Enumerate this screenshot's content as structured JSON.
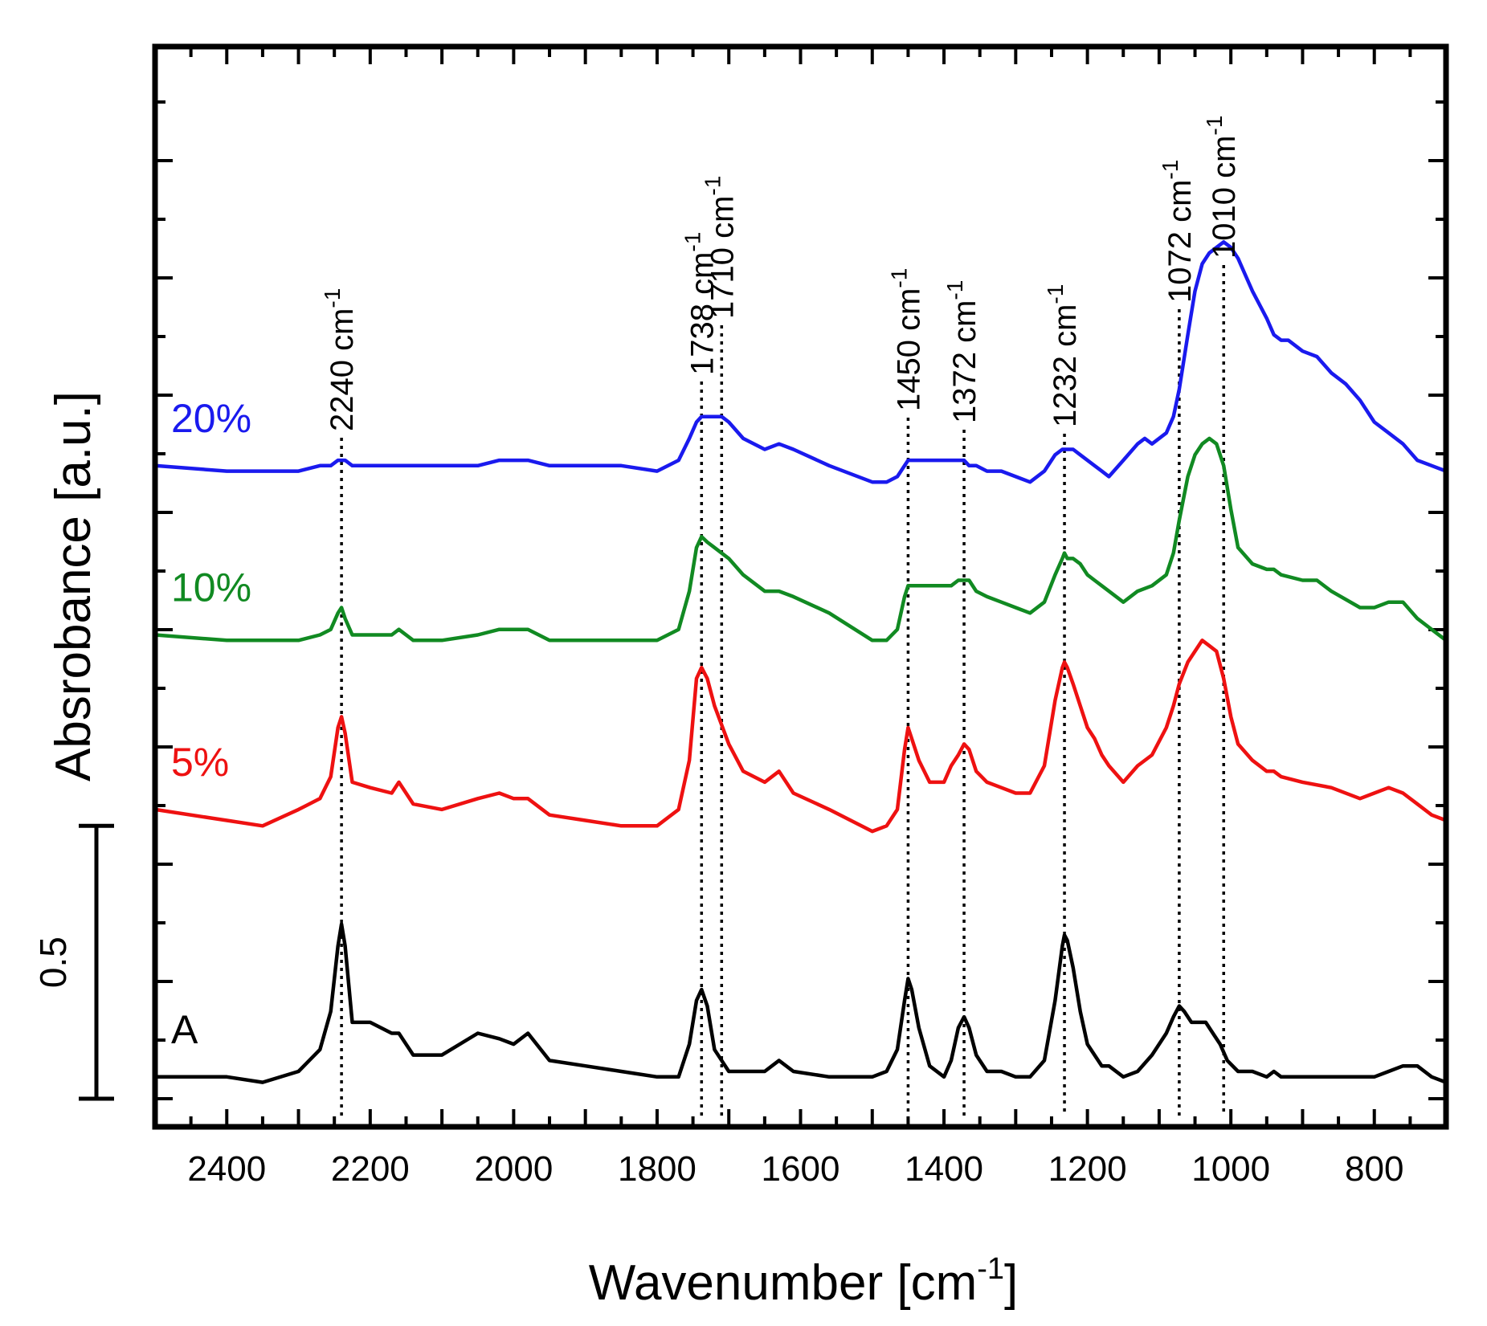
{
  "chart_data": {
    "type": "line",
    "title": "",
    "xlabel": "Wavenumber [cm",
    "xlabel_sup": "-1",
    "xlabel_close": "]",
    "ylabel": "Absrobance [a.u.]",
    "xlim": [
      2500,
      700
    ],
    "ylim": [
      0,
      1.8
    ],
    "x_ticks": [
      2400,
      2200,
      2000,
      1800,
      1600,
      1400,
      1200,
      1000,
      800
    ],
    "x_tick_labels": [
      "2400",
      "2200",
      "2000",
      "1800",
      "1600",
      "1400",
      "1200",
      "1000",
      "800"
    ],
    "scale_bar": {
      "label": "0.5",
      "value": 0.5
    },
    "peaks": [
      {
        "x": 2240,
        "label": "2240 cm",
        "sup": "-1"
      },
      {
        "x": 1738,
        "label": "1738 cm",
        "sup": "-1"
      },
      {
        "x": 1710,
        "label": "1710 cm",
        "sup": "-1"
      },
      {
        "x": 1450,
        "label": "1450 cm",
        "sup": "-1"
      },
      {
        "x": 1372,
        "label": "1372 cm",
        "sup": "-1"
      },
      {
        "x": 1232,
        "label": "1232 cm",
        "sup": "-1"
      },
      {
        "x": 1072,
        "label": "1072 cm",
        "sup": "-1"
      },
      {
        "x": 1010,
        "label": "1010 cm",
        "sup": "-1"
      }
    ],
    "series": [
      {
        "name": "A",
        "color": "#000000",
        "x": [
          2500,
          2400,
          2350,
          2300,
          2270,
          2255,
          2245,
          2240,
          2235,
          2225,
          2200,
          2170,
          2160,
          2140,
          2100,
          2050,
          2020,
          2000,
          1980,
          1950,
          1900,
          1850,
          1800,
          1770,
          1755,
          1745,
          1738,
          1730,
          1720,
          1700,
          1680,
          1650,
          1630,
          1610,
          1560,
          1500,
          1480,
          1465,
          1455,
          1450,
          1445,
          1435,
          1420,
          1400,
          1390,
          1380,
          1372,
          1365,
          1355,
          1340,
          1320,
          1300,
          1280,
          1260,
          1245,
          1235,
          1232,
          1228,
          1220,
          1210,
          1200,
          1190,
          1180,
          1170,
          1150,
          1130,
          1110,
          1090,
          1080,
          1072,
          1065,
          1055,
          1045,
          1035,
          1025,
          1015,
          1005,
          990,
          970,
          950,
          940,
          930,
          900,
          860,
          820,
          800,
          780,
          760,
          740,
          720,
          700
        ],
        "y": [
          0.04,
          0.04,
          0.03,
          0.05,
          0.09,
          0.16,
          0.28,
          0.32,
          0.28,
          0.14,
          0.14,
          0.12,
          0.12,
          0.08,
          0.08,
          0.12,
          0.11,
          0.1,
          0.12,
          0.07,
          0.06,
          0.05,
          0.04,
          0.04,
          0.1,
          0.18,
          0.2,
          0.17,
          0.09,
          0.05,
          0.05,
          0.05,
          0.07,
          0.05,
          0.04,
          0.04,
          0.05,
          0.09,
          0.18,
          0.22,
          0.2,
          0.13,
          0.06,
          0.04,
          0.07,
          0.13,
          0.15,
          0.13,
          0.08,
          0.05,
          0.05,
          0.04,
          0.04,
          0.07,
          0.18,
          0.28,
          0.3,
          0.29,
          0.24,
          0.16,
          0.1,
          0.08,
          0.06,
          0.06,
          0.04,
          0.05,
          0.08,
          0.12,
          0.15,
          0.17,
          0.16,
          0.14,
          0.14,
          0.14,
          0.12,
          0.1,
          0.07,
          0.05,
          0.05,
          0.04,
          0.05,
          0.04,
          0.04,
          0.04,
          0.04,
          0.04,
          0.05,
          0.06,
          0.06,
          0.04,
          0.03
        ]
      },
      {
        "name": "5%",
        "color": "#ee1111",
        "x": [
          2500,
          2400,
          2350,
          2300,
          2270,
          2255,
          2245,
          2240,
          2235,
          2225,
          2200,
          2170,
          2160,
          2140,
          2100,
          2050,
          2020,
          2000,
          1980,
          1950,
          1900,
          1850,
          1800,
          1770,
          1755,
          1745,
          1738,
          1730,
          1720,
          1700,
          1680,
          1650,
          1630,
          1610,
          1560,
          1500,
          1480,
          1465,
          1455,
          1450,
          1445,
          1435,
          1420,
          1400,
          1390,
          1380,
          1372,
          1365,
          1355,
          1340,
          1320,
          1300,
          1280,
          1260,
          1245,
          1235,
          1232,
          1228,
          1220,
          1210,
          1200,
          1190,
          1180,
          1170,
          1150,
          1130,
          1110,
          1090,
          1080,
          1072,
          1060,
          1050,
          1040,
          1030,
          1020,
          1010,
          1000,
          990,
          970,
          950,
          940,
          930,
          900,
          860,
          820,
          800,
          780,
          760,
          740,
          720,
          700
        ],
        "y": [
          0.53,
          0.51,
          0.5,
          0.53,
          0.55,
          0.59,
          0.68,
          0.7,
          0.67,
          0.58,
          0.57,
          0.56,
          0.58,
          0.54,
          0.53,
          0.55,
          0.56,
          0.55,
          0.55,
          0.52,
          0.51,
          0.5,
          0.5,
          0.53,
          0.62,
          0.77,
          0.79,
          0.77,
          0.72,
          0.65,
          0.6,
          0.58,
          0.6,
          0.56,
          0.53,
          0.49,
          0.5,
          0.53,
          0.64,
          0.68,
          0.66,
          0.62,
          0.58,
          0.58,
          0.61,
          0.63,
          0.65,
          0.64,
          0.6,
          0.58,
          0.57,
          0.56,
          0.56,
          0.61,
          0.73,
          0.79,
          0.8,
          0.79,
          0.76,
          0.72,
          0.68,
          0.66,
          0.63,
          0.61,
          0.58,
          0.61,
          0.63,
          0.68,
          0.72,
          0.76,
          0.8,
          0.82,
          0.84,
          0.83,
          0.82,
          0.77,
          0.7,
          0.65,
          0.62,
          0.6,
          0.6,
          0.59,
          0.58,
          0.57,
          0.55,
          0.56,
          0.57,
          0.56,
          0.54,
          0.52,
          0.51
        ]
      },
      {
        "name": "10%",
        "color": "#118a22",
        "x": [
          2500,
          2400,
          2350,
          2300,
          2270,
          2255,
          2245,
          2240,
          2235,
          2225,
          2200,
          2170,
          2160,
          2140,
          2100,
          2050,
          2020,
          2000,
          1980,
          1950,
          1900,
          1850,
          1800,
          1770,
          1755,
          1745,
          1738,
          1730,
          1720,
          1700,
          1680,
          1650,
          1630,
          1610,
          1560,
          1500,
          1480,
          1465,
          1455,
          1450,
          1445,
          1435,
          1420,
          1400,
          1390,
          1380,
          1372,
          1365,
          1355,
          1340,
          1320,
          1300,
          1280,
          1260,
          1245,
          1235,
          1232,
          1228,
          1220,
          1210,
          1200,
          1190,
          1180,
          1170,
          1150,
          1130,
          1110,
          1090,
          1080,
          1072,
          1060,
          1050,
          1040,
          1030,
          1020,
          1010,
          1000,
          990,
          970,
          950,
          940,
          930,
          900,
          880,
          860,
          820,
          800,
          780,
          760,
          740,
          720,
          700
        ],
        "y": [
          0.85,
          0.84,
          0.84,
          0.84,
          0.85,
          0.86,
          0.89,
          0.9,
          0.88,
          0.85,
          0.85,
          0.85,
          0.86,
          0.84,
          0.84,
          0.85,
          0.86,
          0.86,
          0.86,
          0.84,
          0.84,
          0.84,
          0.84,
          0.86,
          0.93,
          1.01,
          1.03,
          1.02,
          1.01,
          0.99,
          0.96,
          0.93,
          0.93,
          0.92,
          0.89,
          0.84,
          0.84,
          0.86,
          0.92,
          0.94,
          0.94,
          0.94,
          0.94,
          0.94,
          0.94,
          0.95,
          0.95,
          0.95,
          0.93,
          0.92,
          0.91,
          0.9,
          0.89,
          0.91,
          0.96,
          0.99,
          1.0,
          0.99,
          0.99,
          0.98,
          0.96,
          0.95,
          0.94,
          0.93,
          0.91,
          0.93,
          0.94,
          0.96,
          1.0,
          1.06,
          1.14,
          1.18,
          1.2,
          1.21,
          1.2,
          1.16,
          1.08,
          1.01,
          0.98,
          0.97,
          0.97,
          0.96,
          0.95,
          0.95,
          0.93,
          0.9,
          0.9,
          0.91,
          0.91,
          0.88,
          0.86,
          0.84
        ]
      },
      {
        "name": "20%",
        "color": "#1a1aee",
        "x": [
          2500,
          2400,
          2350,
          2300,
          2270,
          2255,
          2245,
          2240,
          2235,
          2225,
          2200,
          2170,
          2160,
          2140,
          2100,
          2050,
          2020,
          2000,
          1980,
          1950,
          1900,
          1850,
          1800,
          1770,
          1755,
          1745,
          1738,
          1730,
          1720,
          1710,
          1700,
          1680,
          1650,
          1630,
          1610,
          1560,
          1500,
          1480,
          1465,
          1455,
          1450,
          1445,
          1435,
          1420,
          1400,
          1390,
          1380,
          1372,
          1365,
          1355,
          1340,
          1320,
          1300,
          1280,
          1260,
          1245,
          1235,
          1232,
          1228,
          1220,
          1210,
          1200,
          1190,
          1180,
          1170,
          1150,
          1130,
          1120,
          1110,
          1090,
          1080,
          1072,
          1060,
          1050,
          1040,
          1030,
          1020,
          1010,
          1000,
          990,
          980,
          970,
          950,
          940,
          930,
          920,
          900,
          880,
          860,
          840,
          820,
          800,
          780,
          760,
          740,
          720,
          700
        ],
        "y": [
          1.16,
          1.15,
          1.15,
          1.15,
          1.16,
          1.16,
          1.17,
          1.17,
          1.17,
          1.16,
          1.16,
          1.16,
          1.16,
          1.16,
          1.16,
          1.16,
          1.17,
          1.17,
          1.17,
          1.16,
          1.16,
          1.16,
          1.15,
          1.17,
          1.21,
          1.24,
          1.25,
          1.25,
          1.25,
          1.25,
          1.24,
          1.21,
          1.19,
          1.2,
          1.19,
          1.16,
          1.13,
          1.13,
          1.14,
          1.16,
          1.17,
          1.17,
          1.17,
          1.17,
          1.17,
          1.17,
          1.17,
          1.17,
          1.16,
          1.16,
          1.15,
          1.15,
          1.14,
          1.13,
          1.15,
          1.18,
          1.19,
          1.19,
          1.19,
          1.19,
          1.18,
          1.17,
          1.16,
          1.15,
          1.14,
          1.17,
          1.2,
          1.21,
          1.2,
          1.22,
          1.25,
          1.3,
          1.4,
          1.48,
          1.53,
          1.55,
          1.56,
          1.57,
          1.56,
          1.54,
          1.51,
          1.48,
          1.43,
          1.4,
          1.39,
          1.39,
          1.37,
          1.36,
          1.33,
          1.31,
          1.28,
          1.24,
          1.22,
          1.2,
          1.17,
          1.16,
          1.15
        ]
      }
    ]
  }
}
